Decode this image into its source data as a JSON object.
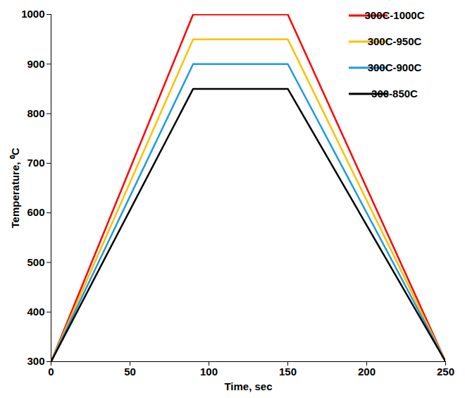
{
  "chart_data": {
    "type": "line",
    "x_label": "Time, sec",
    "y_label": "Temperature, ⁰C",
    "x": [
      0,
      90,
      150,
      250
    ],
    "series": [
      {
        "name": "300C-1000C",
        "color": "#ff0000",
        "values": [
          300,
          1000,
          1000,
          300
        ]
      },
      {
        "name": "300C-950C",
        "color": "#ffc000",
        "values": [
          300,
          950,
          950,
          300
        ]
      },
      {
        "name": "300C-900C",
        "color": "#1e9ae0",
        "values": [
          300,
          900,
          900,
          300
        ]
      },
      {
        "name": "300-850C",
        "color": "#000000",
        "values": [
          300,
          850,
          850,
          300
        ]
      }
    ],
    "xlim": [
      0,
      250
    ],
    "xticks": [
      0,
      50,
      100,
      150,
      200,
      250
    ],
    "ylim": [
      300,
      1000
    ],
    "yticks": [
      300,
      400,
      500,
      600,
      700,
      800,
      900,
      1000
    ],
    "grid": false,
    "legend": "top-right"
  }
}
